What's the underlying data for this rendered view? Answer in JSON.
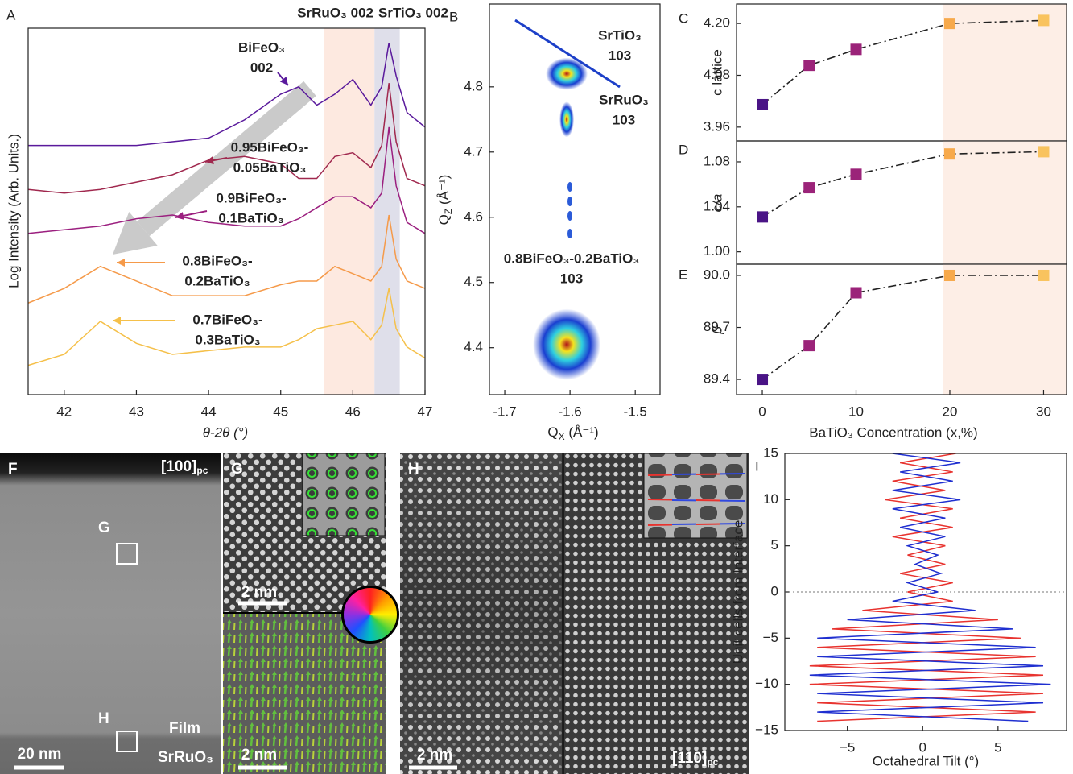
{
  "chart_data": [
    {
      "type": "line",
      "label": "A",
      "xlabel": "θ-2θ (°)",
      "ylabel": "Log Intensity (Arb. Units.)",
      "x": [
        41.5,
        42,
        42.5,
        43,
        43.5,
        44,
        44.5,
        45,
        45.25,
        45.5,
        45.75,
        46,
        46.25,
        46.4,
        46.5,
        46.6,
        46.75,
        47
      ],
      "xlim": [
        41.5,
        47
      ],
      "xticks": [
        42,
        43,
        44,
        45,
        46,
        47
      ],
      "ylim": [
        0,
        10
      ],
      "series": [
        {
          "label_lines": [
            "BiFeO₃",
            "002"
          ],
          "color": "#5a1a9c",
          "values": [
            6.8,
            6.8,
            6.8,
            6.8,
            6.9,
            7.0,
            7.5,
            8.2,
            8.4,
            7.9,
            8.2,
            8.6,
            7.9,
            8.4,
            9.6,
            8.7,
            7.7,
            7.3
          ]
        },
        {
          "label_lines": [
            "0.95BiFeO₃-",
            "0.05BaTiO₃"
          ],
          "color": "#a0284e",
          "values": [
            5.6,
            5.5,
            5.6,
            5.8,
            6.0,
            6.4,
            6.5,
            6.3,
            5.9,
            5.9,
            6.5,
            6.6,
            6.2,
            6.8,
            8.5,
            6.9,
            5.9,
            5.7
          ]
        },
        {
          "label_lines": [
            "0.9BiFeO₃-",
            "0.1BaTiO₃"
          ],
          "color": "#9b1f7f",
          "values": [
            4.4,
            4.5,
            4.6,
            4.8,
            4.9,
            4.7,
            4.6,
            4.6,
            4.8,
            5.1,
            5.4,
            5.4,
            5.1,
            5.5,
            7.3,
            5.7,
            4.7,
            4.4
          ]
        },
        {
          "label_lines": [
            "0.8BiFeO₃-",
            "0.2BaTiO₃"
          ],
          "color": "#f59a4a",
          "values": [
            2.5,
            2.9,
            3.5,
            3.1,
            2.7,
            2.7,
            2.7,
            3.0,
            3.1,
            3.1,
            3.5,
            3.3,
            3.1,
            3.5,
            4.9,
            3.7,
            3.1,
            2.9
          ]
        },
        {
          "label_lines": [
            "0.7BiFeO₃-",
            "0.3BaTiO₃"
          ],
          "color": "#f5c04a",
          "values": [
            0.8,
            1.1,
            2.0,
            1.4,
            1.1,
            1.2,
            1.3,
            1.3,
            1.5,
            1.8,
            1.9,
            2.0,
            1.5,
            1.9,
            2.9,
            1.8,
            1.3,
            1.0
          ]
        }
      ],
      "annotations": [
        {
          "text": "SrRuO₃ 002",
          "color": "#c8561c"
        },
        {
          "text": "SrTiO₃ 002",
          "color": "#1d2a6e"
        }
      ],
      "shaded_regions": [
        {
          "xlim": [
            45.6,
            46.3
          ],
          "color": "#fde9e0"
        },
        {
          "xlim": [
            46.3,
            46.65
          ],
          "color": "#dfdfea"
        }
      ]
    },
    {
      "type": "scatter",
      "label": "B",
      "xlabel": [
        "Q",
        "X",
        " (Å⁻¹)"
      ],
      "ylabel": [
        "Q",
        "Z",
        " (Å⁻¹)"
      ],
      "x": [
        -1.605,
        -1.605,
        -1.605
      ],
      "values": [
        4.82,
        4.75,
        4.405
      ],
      "xlim": [
        -1.7235,
        -1.462
      ],
      "xticks": [
        -1.7,
        -1.6,
        -1.5
      ],
      "ylim": [
        4.328,
        4.927
      ],
      "yticks": [
        4.4,
        4.5,
        4.6,
        4.7,
        4.8
      ],
      "annotations": [
        {
          "lines": [
            "SrTiO₃",
            "103"
          ],
          "color": "#1d2a6e"
        },
        {
          "lines": [
            "SrRuO₃",
            "103"
          ],
          "color": "#c8561c"
        },
        {
          "lines": [
            "0.8BiFeO₃-0.2BaTiO₃",
            "103"
          ],
          "color": "#f5a445"
        }
      ]
    },
    {
      "type": "line",
      "label": "C",
      "ylabel": "c lattice",
      "x": [
        0,
        5,
        10,
        20,
        30
      ],
      "xlim": [
        -2.75,
        32.45
      ],
      "ylim": [
        3.928,
        4.245
      ],
      "yticks": [
        3.96,
        4.08,
        {
          "value": 4.2,
          "label": "4.20"
        }
      ],
      "series": [
        {
          "color": "#222222",
          "values": [
            4.012,
            4.103,
            4.14,
            4.2,
            4.207
          ]
        }
      ],
      "point_colors": [
        "#4a1486",
        "#9b2379",
        "#9b2379",
        "#f7a94b",
        "#f9c35e"
      ],
      "line_style": "dash-dot",
      "markers": "square",
      "shaded_xlim": [
        19.3,
        32.45
      ],
      "shaded_color": "#fdeee6"
    },
    {
      "type": "line",
      "label": "D",
      "ylabel": "c/a",
      "x": [
        0,
        5,
        10,
        20,
        30
      ],
      "xlim": [
        -2.75,
        32.45
      ],
      "ylim": [
        0.989,
        1.0986
      ],
      "yticks": [
        {
          "value": 1,
          "label": "1.00"
        },
        1.04,
        1.08
      ],
      "series": [
        {
          "color": "#222222",
          "values": [
            1.031,
            1.057,
            1.069,
            1.087,
            1.089
          ]
        }
      ],
      "point_colors": [
        "#4a1486",
        "#9b2379",
        "#9b2379",
        "#f7a94b",
        "#f9c35e"
      ],
      "line_style": "dash-dot",
      "markers": "square",
      "shaded_xlim": [
        19.3,
        32.45
      ],
      "shaded_color": "#fdeee6"
    },
    {
      "type": "line",
      "label": "E",
      "ylabel": "β",
      "xlabel": "BaTiO₃ Concentration (x,%)",
      "x": [
        0,
        5,
        10,
        20,
        30
      ],
      "xlim": [
        -2.75,
        32.45
      ],
      "xticks": [
        0,
        10,
        20,
        30
      ],
      "ylim": [
        89.312,
        90.065
      ],
      "yticks": [
        89.4,
        89.7,
        {
          "value": 90,
          "label": "90.0"
        }
      ],
      "series": [
        {
          "color": "#222222",
          "values": [
            89.4,
            89.595,
            89.9,
            90,
            90
          ]
        }
      ],
      "point_colors": [
        "#4a1486",
        "#9b2379",
        "#9b2379",
        "#f7a94b",
        "#f9c35e"
      ],
      "line_style": "dash-dot",
      "markers": "square",
      "shaded_xlim": [
        19.3,
        32.45
      ],
      "shaded_color": "#fdeee6"
    },
    {
      "type": "line",
      "label": "I",
      "xlabel": "Octahedral Tilt (°)",
      "ylabel": "Unit cells from Interface",
      "y": [
        -14,
        -13,
        -12,
        -11,
        -10,
        -9,
        -8,
        -7,
        -6,
        -5,
        -4,
        -3,
        -2,
        -1,
        0,
        1,
        2,
        3,
        4,
        5,
        6,
        7,
        8,
        9,
        10,
        11,
        12,
        13,
        14,
        15
      ],
      "xlim": [
        -9.15,
        9.55
      ],
      "xticks": [
        {
          "value": -5,
          "label": "−5"
        },
        0,
        5
      ],
      "ylim": [
        -15,
        15
      ],
      "yticks": [
        {
          "value": -15,
          "label": "−15"
        },
        {
          "value": -10,
          "label": "−10"
        },
        {
          "value": -5,
          "label": "−5"
        },
        0,
        5,
        10,
        15
      ],
      "series": [
        {
          "color": "#e8332f",
          "values": [
            -7,
            7.5,
            -7,
            8,
            -7.5,
            8,
            -7.5,
            7.5,
            -7,
            6.5,
            -6,
            5,
            -4,
            2,
            -1,
            2,
            -1.5,
            1.5,
            -1,
            1.5,
            -2,
            2,
            -1.5,
            2,
            -2.5,
            1.5,
            -2,
            2,
            -1.5,
            2.2
          ]
        },
        {
          "color": "#1f2fd0",
          "values": [
            7,
            -7,
            8,
            -7,
            8.5,
            -7.5,
            8,
            -7,
            7.5,
            -7,
            6,
            -5,
            3.5,
            -2,
            1,
            -1,
            1.2,
            -0.5,
            1,
            -1,
            1.5,
            -1.5,
            1.5,
            -2,
            2.5,
            -2,
            2,
            -1.5,
            2.5,
            -2
          ]
        }
      ]
    }
  ],
  "images": {
    "F": {
      "label": "F",
      "zone_axis": "[100]",
      "zone_axis_sub": "pc",
      "box_labels": [
        "G",
        "H"
      ],
      "layers": [
        "Film",
        "SrRuO₃"
      ],
      "scale_bar": "20 nm"
    },
    "G": {
      "label": "G",
      "scale_bars": [
        "2 nm",
        "2 nm"
      ]
    },
    "H": {
      "label": "H",
      "scale_bar": "2 nm",
      "zone_axis": "[110]",
      "zone_axis_sub": "pc"
    }
  }
}
